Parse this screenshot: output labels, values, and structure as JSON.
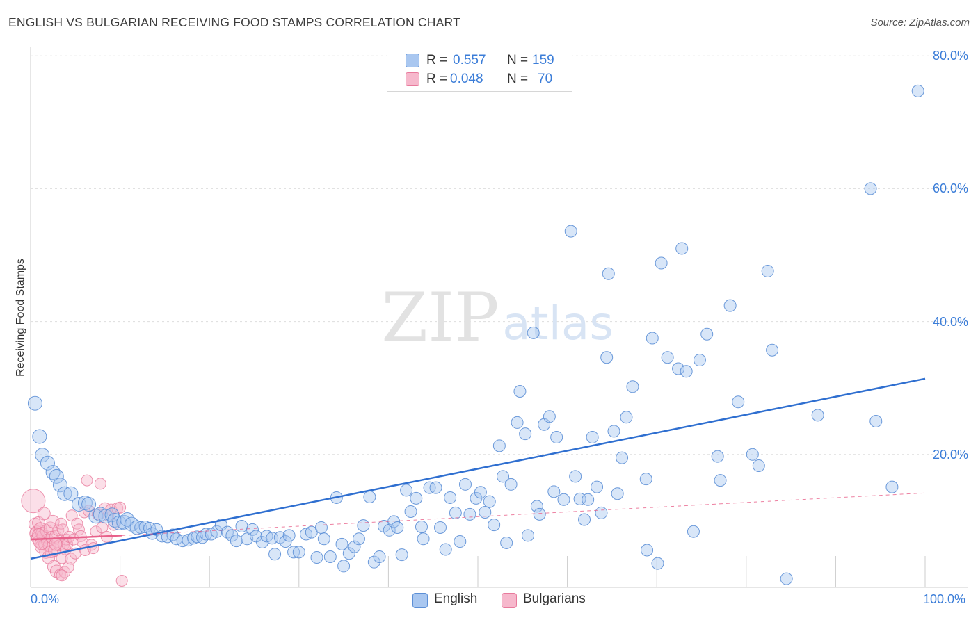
{
  "title": "ENGLISH VS BULGARIAN RECEIVING FOOD STAMPS CORRELATION CHART",
  "source": "Source: ZipAtlas.com",
  "watermark": {
    "zip": "ZIP",
    "atlas": "atlas"
  },
  "colors": {
    "english_fill": "#a9c7f0",
    "english_stroke": "#5c8fd6",
    "english_line": "#2f6fd0",
    "bulgarian_fill": "#f6b8cc",
    "bulgarian_stroke": "#e87a9c",
    "bulgarian_line": "#e8608a",
    "value_text": "#3b7dd8",
    "grid": "#dddddd"
  },
  "legend": {
    "rows": [
      {
        "r_label": "R =",
        "r_value": "0.557",
        "n_label": "N =",
        "n_value": "159"
      },
      {
        "r_label": "R =",
        "r_value": "0.048",
        "n_label": "N =",
        "n_value": "70"
      }
    ],
    "series": [
      "English",
      "Bulgarians"
    ]
  },
  "chart_data": {
    "type": "scatter",
    "title": "ENGLISH VS BULGARIAN RECEIVING FOOD STAMPS CORRELATION CHART",
    "xlabel": "",
    "ylabel": "Receiving Food Stamps",
    "xlim": [
      0,
      100
    ],
    "ylim": [
      0,
      82
    ],
    "x_tick_labels": [
      "0.0%",
      "100.0%"
    ],
    "y_ticks": [
      20,
      40,
      60,
      80
    ],
    "y_tick_labels": [
      "20.0%",
      "40.0%",
      "60.0%",
      "80.0%"
    ],
    "grid": true,
    "legend_position": "top-center",
    "series": [
      {
        "name": "English",
        "R": 0.557,
        "N": 159,
        "trend": {
          "x": [
            0,
            100
          ],
          "y": [
            4.3,
            31.4
          ]
        },
        "points": [
          [
            0.5,
            27.7
          ],
          [
            1,
            22.7
          ],
          [
            1.3,
            19.9
          ],
          [
            1.9,
            18.7
          ],
          [
            2.5,
            17.3
          ],
          [
            2.9,
            16.7
          ],
          [
            3.3,
            15.4
          ],
          [
            3.8,
            14.1
          ],
          [
            4.5,
            14.1
          ],
          [
            5.4,
            12.5
          ],
          [
            6.1,
            12.7
          ],
          [
            6.5,
            12.5
          ],
          [
            7.3,
            10.7
          ],
          [
            7.8,
            11
          ],
          [
            8.4,
            10.7
          ],
          [
            9.1,
            10.9
          ],
          [
            9.4,
            10.1
          ],
          [
            9.9,
            9.7
          ],
          [
            10.4,
            9.8
          ],
          [
            10.8,
            10.2
          ],
          [
            11.3,
            9.5
          ],
          [
            11.9,
            9
          ],
          [
            12.3,
            9
          ],
          [
            12.8,
            9.1
          ],
          [
            13.3,
            8.9
          ],
          [
            13.6,
            8.1
          ],
          [
            14.1,
            8.7
          ],
          [
            14.7,
            7.7
          ],
          [
            15.3,
            7.6
          ],
          [
            15.9,
            7.9
          ],
          [
            16.3,
            7.3
          ],
          [
            17,
            7
          ],
          [
            17.6,
            7.1
          ],
          [
            18.2,
            7.4
          ],
          [
            18.6,
            7.6
          ],
          [
            19.2,
            7.5
          ],
          [
            19.6,
            8
          ],
          [
            20.2,
            8
          ],
          [
            20.8,
            8.4
          ],
          [
            21.3,
            9.4
          ],
          [
            22,
            8.3
          ],
          [
            22.5,
            7.8
          ],
          [
            23,
            7
          ],
          [
            23.6,
            9.2
          ],
          [
            24.2,
            7.3
          ],
          [
            24.8,
            8.7
          ],
          [
            25.2,
            7.7
          ],
          [
            25.9,
            6.8
          ],
          [
            26.4,
            7.7
          ],
          [
            27,
            7.4
          ],
          [
            27.3,
            5
          ],
          [
            27.9,
            7.5
          ],
          [
            28.5,
            6.9
          ],
          [
            28.9,
            7.8
          ],
          [
            29.4,
            5.3
          ],
          [
            30,
            5.3
          ],
          [
            30.8,
            8
          ],
          [
            31.4,
            8.3
          ],
          [
            32,
            4.5
          ],
          [
            32.5,
            9
          ],
          [
            32.8,
            7.3
          ],
          [
            33.5,
            4.6
          ],
          [
            34.2,
            13.5
          ],
          [
            34.8,
            6.5
          ],
          [
            35,
            3.2
          ],
          [
            35.6,
            5.1
          ],
          [
            36.2,
            6.1
          ],
          [
            36.7,
            7.3
          ],
          [
            37.2,
            9.3
          ],
          [
            37.9,
            13.6
          ],
          [
            38.4,
            3.8
          ],
          [
            39,
            4.6
          ],
          [
            39.5,
            9.2
          ],
          [
            40.1,
            8.6
          ],
          [
            40.6,
            9.9
          ],
          [
            41,
            9
          ],
          [
            41.5,
            4.9
          ],
          [
            42,
            14.6
          ],
          [
            42.5,
            11.4
          ],
          [
            43.1,
            13.4
          ],
          [
            43.7,
            9.1
          ],
          [
            43.9,
            7.3
          ],
          [
            44.6,
            15
          ],
          [
            45.3,
            15
          ],
          [
            45.8,
            9
          ],
          [
            46.4,
            5.7
          ],
          [
            46.9,
            13.5
          ],
          [
            47.5,
            11.2
          ],
          [
            48,
            6.9
          ],
          [
            48.6,
            15.5
          ],
          [
            49.1,
            11
          ],
          [
            49.8,
            13.4
          ],
          [
            50.3,
            14.3
          ],
          [
            50.8,
            11.3
          ],
          [
            51.3,
            12.9
          ],
          [
            51.8,
            9.4
          ],
          [
            52.4,
            21.3
          ],
          [
            52.8,
            16.7
          ],
          [
            53.2,
            6.7
          ],
          [
            53.7,
            15.5
          ],
          [
            54.4,
            24.8
          ],
          [
            54.7,
            29.5
          ],
          [
            55.3,
            23.1
          ],
          [
            55.6,
            7.8
          ],
          [
            56.2,
            38.3
          ],
          [
            56.6,
            12.2
          ],
          [
            56.9,
            11
          ],
          [
            57.4,
            24.5
          ],
          [
            58,
            25.7
          ],
          [
            58.5,
            14.4
          ],
          [
            58.8,
            22.6
          ],
          [
            59.6,
            13.2
          ],
          [
            60.4,
            53.6
          ],
          [
            60.9,
            16.7
          ],
          [
            61.4,
            13.3
          ],
          [
            61.9,
            10.2
          ],
          [
            62.3,
            13.2
          ],
          [
            62.8,
            22.6
          ],
          [
            63.3,
            15.1
          ],
          [
            63.8,
            11.2
          ],
          [
            64.4,
            34.6
          ],
          [
            64.6,
            47.2
          ],
          [
            65.2,
            23.5
          ],
          [
            65.6,
            14.1
          ],
          [
            66.1,
            19.5
          ],
          [
            66.6,
            25.6
          ],
          [
            67.3,
            30.2
          ],
          [
            68.8,
            16.3
          ],
          [
            68.9,
            5.6
          ],
          [
            69.5,
            37.5
          ],
          [
            70.1,
            3.6
          ],
          [
            70.5,
            48.8
          ],
          [
            71.2,
            34.6
          ],
          [
            72.4,
            32.9
          ],
          [
            72.8,
            51
          ],
          [
            73.3,
            32.5
          ],
          [
            74.1,
            8.4
          ],
          [
            74.8,
            34.2
          ],
          [
            75.6,
            38.1
          ],
          [
            76.8,
            19.7
          ],
          [
            77.1,
            16.1
          ],
          [
            78.2,
            42.4
          ],
          [
            79.1,
            27.9
          ],
          [
            80.7,
            20
          ],
          [
            81.4,
            18.3
          ],
          [
            82.4,
            47.6
          ],
          [
            82.9,
            35.7
          ],
          [
            84.5,
            1.3
          ],
          [
            88,
            25.9
          ],
          [
            93.9,
            60
          ],
          [
            94.5,
            25
          ],
          [
            96.3,
            15.1
          ],
          [
            99.2,
            74.7
          ]
        ]
      },
      {
        "name": "Bulgarians",
        "R": 0.048,
        "N": 70,
        "trend_solid": {
          "x": [
            0,
            10.2
          ],
          "y": [
            7.2,
            7.8
          ]
        },
        "trend_dashed": {
          "x": [
            10.2,
            100
          ],
          "y": [
            7.8,
            14.2
          ]
        },
        "points": [
          [
            0.3,
            13
          ],
          [
            0.5,
            9.5
          ],
          [
            0.6,
            8.1
          ],
          [
            0.7,
            8.3
          ],
          [
            0.8,
            7.4
          ],
          [
            0.9,
            9.7
          ],
          [
            1,
            6.9
          ],
          [
            1.1,
            8.8
          ],
          [
            1.2,
            6.1
          ],
          [
            1.3,
            8.1
          ],
          [
            1.4,
            7.7
          ],
          [
            1.5,
            11.1
          ],
          [
            1.6,
            6.5
          ],
          [
            1.7,
            5.3
          ],
          [
            1.8,
            8.5
          ],
          [
            1.9,
            7.1
          ],
          [
            2,
            4.5
          ],
          [
            2.1,
            6.3
          ],
          [
            2.2,
            8.9
          ],
          [
            2.3,
            5.4
          ],
          [
            2.4,
            7.5
          ],
          [
            2.5,
            9.9
          ],
          [
            2.6,
            3.1
          ],
          [
            2.7,
            5.6
          ],
          [
            2.8,
            7.6
          ],
          [
            2.9,
            2.4
          ],
          [
            3,
            6.8
          ],
          [
            3.1,
            8.6
          ],
          [
            3.2,
            6.3
          ],
          [
            3.3,
            1.9
          ],
          [
            3.4,
            9.6
          ],
          [
            3.5,
            4.4
          ],
          [
            3.6,
            8.7
          ],
          [
            3.7,
            6.4
          ],
          [
            3.8,
            2.3
          ],
          [
            3.9,
            5.7
          ],
          [
            4,
            7.2
          ],
          [
            4.1,
            6.5
          ],
          [
            4.2,
            3
          ],
          [
            4.3,
            7.6
          ],
          [
            4.5,
            4.3
          ],
          [
            4.6,
            10.8
          ],
          [
            4.8,
            7.2
          ],
          [
            5,
            5.1
          ],
          [
            5.2,
            9.6
          ],
          [
            5.4,
            8.7
          ],
          [
            5.6,
            7.7
          ],
          [
            5.8,
            6.8
          ],
          [
            6,
            11.3
          ],
          [
            6.1,
            5.6
          ],
          [
            6.3,
            16.1
          ],
          [
            6.5,
            11.5
          ],
          [
            6.8,
            6.4
          ],
          [
            7,
            5.9
          ],
          [
            7.3,
            8.4
          ],
          [
            7.5,
            11
          ],
          [
            7.8,
            15.6
          ],
          [
            8,
            9
          ],
          [
            8.3,
            11.9
          ],
          [
            8.5,
            7.6
          ],
          [
            8.7,
            10.8
          ],
          [
            9,
            11.7
          ],
          [
            9.3,
            9.4
          ],
          [
            9.7,
            11.9
          ],
          [
            10,
            12
          ],
          [
            10.2,
            1
          ],
          [
            1.2,
            6.6
          ],
          [
            0.9,
            7.9
          ],
          [
            2.8,
            6.5
          ],
          [
            3.5,
            1.8
          ]
        ]
      }
    ]
  }
}
